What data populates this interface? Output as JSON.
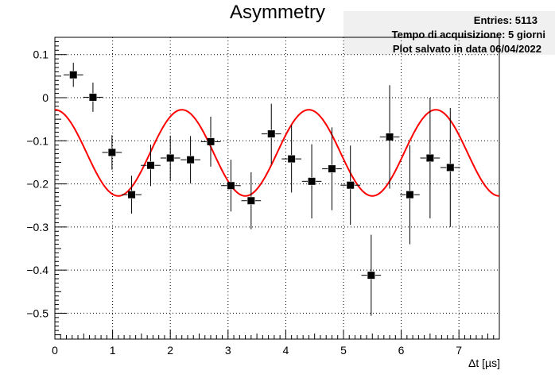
{
  "chart_data": {
    "type": "scatter",
    "title": "Asymmetry",
    "xlabel": "Δt [µs]",
    "ylabel": "",
    "xlim": [
      0,
      7.7
    ],
    "ylim": [
      -0.56,
      0.14
    ],
    "grid": true,
    "x_ticks": [
      "0",
      "1",
      "2",
      "3",
      "4",
      "5",
      "6",
      "7"
    ],
    "y_ticks": [
      "0.1",
      "0",
      "−0.1",
      "−0.2",
      "−0.3",
      "−0.4",
      "−0.5"
    ],
    "stats_box": {
      "entries": "Entries: 5113",
      "acquisition": "Tempo di acquisizione: 5 giorni",
      "saved": "Plot salvato in data 06/04/2022"
    },
    "series": [
      {
        "kind": "points-with-errors",
        "x": [
          0.32,
          0.66,
          0.99,
          1.33,
          1.66,
          2.0,
          2.35,
          2.7,
          3.05,
          3.4,
          3.75,
          4.1,
          4.45,
          4.8,
          5.12,
          5.48,
          5.8,
          6.15,
          6.5,
          6.85
        ],
        "y": [
          0.053,
          0.001,
          -0.127,
          -0.225,
          -0.157,
          -0.14,
          -0.144,
          -0.102,
          -0.204,
          -0.239,
          -0.084,
          -0.142,
          -0.194,
          -0.165,
          -0.203,
          -0.412,
          -0.091,
          -0.225,
          -0.14,
          -0.162
        ],
        "x_err": [
          0.17,
          0.17,
          0.17,
          0.17,
          0.17,
          0.17,
          0.17,
          0.17,
          0.17,
          0.17,
          0.17,
          0.17,
          0.17,
          0.17,
          0.17,
          0.17,
          0.17,
          0.17,
          0.17,
          0.17
        ],
        "y_err": [
          0.028,
          0.034,
          0.04,
          0.044,
          0.048,
          0.052,
          0.055,
          0.058,
          0.06,
          0.066,
          0.07,
          0.078,
          0.086,
          0.096,
          0.092,
          0.094,
          0.12,
          0.115,
          0.14,
          0.138
        ]
      },
      {
        "kind": "fit-curve",
        "color": "#ff0000",
        "model": "offset + amplitude*cos(2*pi*x/period)",
        "offset": -0.128,
        "amplitude": 0.1,
        "period": 2.2,
        "x_range": [
          0,
          7.7
        ]
      }
    ],
    "colors": {
      "points": "#000000",
      "fit": "#ff0000",
      "grid": "#000000",
      "stats_bg": "#f0f0f0"
    }
  }
}
